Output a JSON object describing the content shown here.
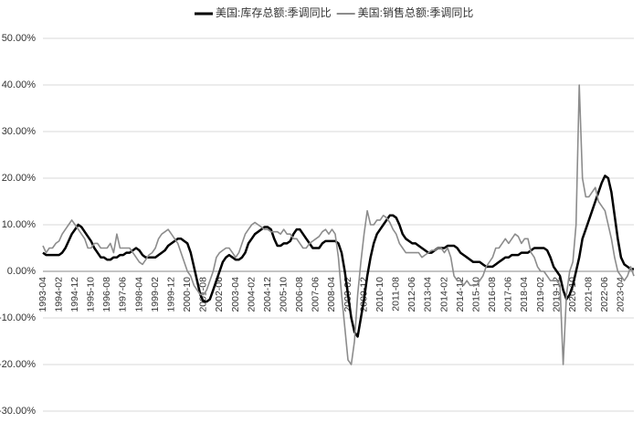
{
  "chart_data": {
    "type": "line",
    "categories": [
      "1993-04",
      null,
      null,
      null,
      null,
      "1994-02",
      null,
      null,
      null,
      null,
      "1994-12",
      null,
      null,
      null,
      null,
      "1995-10",
      null,
      null,
      null,
      null,
      "1996-08",
      null,
      null,
      null,
      null,
      "1997-06",
      null,
      null,
      null,
      null,
      "1998-04",
      null,
      null,
      null,
      null,
      "1999-02",
      null,
      null,
      null,
      null,
      "1999-12",
      null,
      null,
      null,
      null,
      "2000-10",
      null,
      null,
      null,
      null,
      "2001-08",
      null,
      null,
      null,
      null,
      "2002-06",
      null,
      null,
      null,
      null,
      "2003-04",
      null,
      null,
      null,
      null,
      "2004-02",
      null,
      null,
      null,
      null,
      "2004-12",
      null,
      null,
      null,
      null,
      "2005-10",
      null,
      null,
      null,
      null,
      "2006-08",
      null,
      null,
      null,
      null,
      "2007-06",
      null,
      null,
      null,
      null,
      "2008-04",
      null,
      null,
      null,
      null,
      "2009-02",
      null,
      null,
      null,
      null,
      "2009-12",
      null,
      null,
      null,
      null,
      "2010-10",
      null,
      null,
      null,
      null,
      "2011-08",
      null,
      null,
      null,
      null,
      "2012-06",
      null,
      null,
      null,
      null,
      "2013-04",
      null,
      null,
      null,
      null,
      "2014-02",
      null,
      null,
      null,
      null,
      "2014-12",
      null,
      null,
      null,
      null,
      "2015-10",
      null,
      null,
      null,
      null,
      "2016-08",
      null,
      null,
      null,
      null,
      "2017-06",
      null,
      null,
      null,
      null,
      "2018-04",
      null,
      null,
      null,
      null,
      "2019-02",
      null,
      null,
      null,
      null,
      "2019-12",
      null,
      null,
      null,
      null,
      "2020-10",
      null,
      null,
      null,
      null,
      "2021-08",
      null,
      null,
      null,
      null,
      "2022-06",
      null,
      null,
      null,
      null,
      "2023-04",
      null,
      null,
      null,
      null
    ],
    "series": [
      {
        "name": "美国:库存总额:季调同比",
        "color": "#000000",
        "width": 2.5,
        "values": [
          4,
          3.5,
          3.5,
          3.5,
          3.5,
          3.5,
          4,
          5,
          6.5,
          8,
          9,
          10,
          9.5,
          8.5,
          7.5,
          6.5,
          5,
          4,
          3,
          3,
          2.5,
          2.5,
          3,
          3,
          3.5,
          3.5,
          4,
          4,
          4.5,
          5,
          4.5,
          3.5,
          3,
          3,
          3,
          3,
          3.5,
          4,
          4.5,
          5.5,
          6,
          6.5,
          7,
          7,
          6.5,
          6,
          4,
          1,
          -2,
          -5,
          -6.5,
          -6.5,
          -6,
          -4,
          -2,
          0,
          2,
          3,
          3.5,
          3,
          2.5,
          2.5,
          3,
          4,
          6,
          7,
          8,
          8.5,
          9,
          9.5,
          9.5,
          9,
          7,
          5.5,
          5.5,
          6,
          6,
          6.5,
          8,
          9,
          9,
          8,
          7,
          6,
          5,
          5,
          5,
          6,
          6.5,
          6.5,
          6.5,
          6.5,
          6,
          4,
          0,
          -5,
          -10,
          -13,
          -14,
          -10,
          -6,
          -1,
          3,
          6,
          8,
          9,
          10,
          11,
          12,
          12,
          11.5,
          10,
          8,
          7,
          6.5,
          6,
          6,
          5.5,
          5,
          4.5,
          4,
          4,
          4.5,
          5,
          5,
          5,
          5.5,
          5.5,
          5.5,
          5,
          4,
          3.5,
          3,
          2.5,
          2,
          2,
          2,
          1.5,
          1,
          1,
          1,
          1.5,
          2,
          2.5,
          3,
          3,
          3.5,
          3.5,
          3.5,
          4,
          4,
          4,
          4.5,
          5,
          5,
          5,
          5,
          4.5,
          3,
          1,
          0,
          -1,
          -4,
          -6,
          -5,
          -3,
          0,
          3,
          7,
          9,
          11,
          13,
          15,
          17,
          19,
          20.5,
          20,
          17,
          12,
          7,
          3,
          1.5,
          1,
          0.5,
          0.5
        ]
      },
      {
        "name": "美国:销售总额:季调同比",
        "color": "#8c8c8c",
        "width": 1.6,
        "values": [
          5.5,
          4,
          5,
          5,
          6,
          6.5,
          8,
          9,
          10,
          11,
          10,
          9,
          8,
          7,
          5,
          5,
          6,
          6,
          5,
          5,
          5,
          6,
          4,
          8,
          5,
          5,
          5,
          5,
          4,
          3,
          2,
          1.5,
          2.5,
          3.5,
          4,
          5,
          7,
          8,
          8.5,
          9,
          8,
          7,
          6,
          4,
          2,
          0,
          -1,
          -3,
          -4,
          -5,
          -5,
          -4,
          -2,
          0,
          3,
          4,
          4.5,
          5,
          5,
          4,
          3,
          4,
          6,
          8,
          9,
          10,
          10.5,
          10,
          9.5,
          9,
          9,
          8.5,
          8.5,
          8.5,
          8,
          9,
          8,
          8,
          7,
          7,
          6,
          5,
          5,
          6,
          6.5,
          7,
          7.5,
          8.5,
          9,
          8,
          9,
          8,
          3,
          -5,
          -12,
          -19,
          -20,
          -15,
          -5,
          2,
          8,
          13,
          10,
          10,
          11,
          11,
          12,
          11.5,
          10.5,
          9,
          8,
          6,
          5,
          4,
          4,
          4,
          4,
          4,
          3,
          3.5,
          4,
          4.5,
          4.5,
          5,
          5,
          4,
          5,
          3,
          -1,
          -2,
          -2,
          -3,
          -2,
          -3,
          -3,
          -3,
          -2,
          -1,
          1,
          2,
          3,
          5,
          5,
          6,
          7,
          6,
          7,
          8,
          7.5,
          6,
          7,
          7,
          4,
          3,
          1,
          0,
          0,
          -1,
          -2,
          -2,
          -2,
          -3,
          -20,
          -5,
          0,
          2,
          10,
          40,
          20,
          16,
          16,
          17,
          18,
          15,
          14,
          13,
          10,
          7,
          3,
          0,
          -1,
          -2,
          -1,
          1,
          -1
        ]
      }
    ],
    "ylim": [
      -30,
      50
    ],
    "yticks": [
      {
        "value": -30,
        "label": "-30.00%"
      },
      {
        "value": -20,
        "label": "-20.00%"
      },
      {
        "value": -10,
        "label": "-10.00%"
      },
      {
        "value": 0,
        "label": "0.00%"
      },
      {
        "value": 10,
        "label": "10.00%"
      },
      {
        "value": 20,
        "label": "20.00%"
      },
      {
        "value": 30,
        "label": "30.00%"
      },
      {
        "value": 40,
        "label": "40.00%"
      },
      {
        "value": 50,
        "label": "50.00%"
      }
    ],
    "grid": true,
    "legend": "top"
  }
}
